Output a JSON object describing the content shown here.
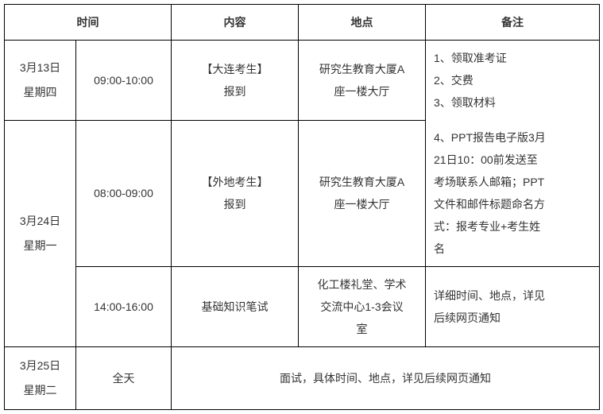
{
  "headers": {
    "time": "时间",
    "content": "内容",
    "location": "地点",
    "notes": "备注"
  },
  "rows": {
    "r1": {
      "date_line1": "3月13日",
      "date_line2": "星期四",
      "time": "09:00-10:00",
      "content_line1": "【大连考生】",
      "content_line2": "报到",
      "location_line1": "研究生教育大厦A",
      "location_line2": "座一楼大厅",
      "notes_line1": "1、领取准考证",
      "notes_line2": "2、交费",
      "notes_line3": "3、领取材料"
    },
    "r2": {
      "date_line1": "3月24日",
      "date_line2": "星期一",
      "time": "08:00-09:00",
      "content_line1": "【外地考生】",
      "content_line2": "报到",
      "location_line1": "研究生教育大厦A",
      "location_line2": "座一楼大厅",
      "notes_line1": "4、PPT报告电子版3月",
      "notes_line2": "21日10：00前发送至",
      "notes_line3": "考场联系人邮箱；PPT",
      "notes_line4": "文件和邮件标题命名方",
      "notes_line5": "式：报考专业+考生姓",
      "notes_line6": "名"
    },
    "r3": {
      "time": "14:00-16:00",
      "content": "基础知识笔试",
      "location_line1": "化工楼礼堂、学术",
      "location_line2": "交流中心1-3会议",
      "location_line3": "室",
      "notes_line1": "详细时间、地点，详见",
      "notes_line2": "后续网页通知"
    },
    "r4": {
      "date_line1": "3月25日",
      "date_line2": "星期二",
      "time": "全天",
      "content": "面试，具体时间、地点，详见后续网页通知"
    }
  }
}
